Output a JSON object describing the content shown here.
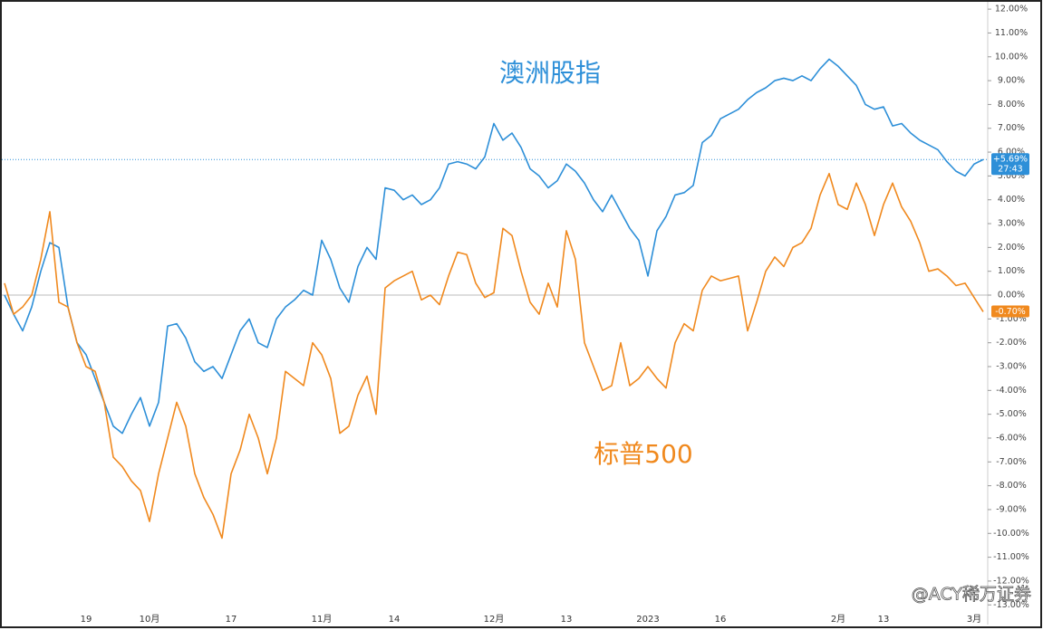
{
  "chart_data": {
    "type": "line",
    "categories": [
      null,
      null,
      null,
      null,
      null,
      null,
      null,
      null,
      null,
      "19",
      null,
      null,
      null,
      null,
      null,
      null,
      "10月",
      null,
      null,
      null,
      null,
      null,
      null,
      null,
      null,
      "17",
      null,
      null,
      null,
      null,
      null,
      null,
      null,
      null,
      null,
      "11月",
      null,
      null,
      null,
      null,
      null,
      null,
      null,
      "14",
      null,
      null,
      null,
      null,
      null,
      null,
      null,
      null,
      null,
      null,
      "12月",
      null,
      null,
      null,
      null,
      null,
      null,
      null,
      "13",
      null,
      null,
      null,
      null,
      null,
      null,
      null,
      null,
      "2023",
      null,
      null,
      null,
      null,
      null,
      null,
      null,
      "16",
      null,
      null,
      null,
      null,
      null,
      null,
      null,
      null,
      null,
      null,
      null,
      null,
      "2月",
      null,
      null,
      null,
      null,
      "13",
      null,
      null,
      null,
      null,
      null,
      null,
      null,
      null,
      null,
      "3月",
      null
    ],
    "series": [
      {
        "name": "澳洲股指",
        "color": "#2d8fd8",
        "last_label": "+5.69%",
        "countdown": "27:43",
        "values": [
          0,
          -0.8,
          -1.5,
          -0.5,
          1,
          2.2,
          2,
          -0.5,
          -2,
          -2.5,
          -3.5,
          -4.5,
          -5.5,
          -5.8,
          -5,
          -4.3,
          -5.5,
          -4.5,
          -1.3,
          -1.2,
          -1.8,
          -2.8,
          -3.2,
          -3.0,
          -3.5,
          -2.5,
          -1.5,
          -1,
          -2,
          -2.2,
          -1,
          -0.5,
          -0.2,
          0.2,
          0,
          2.3,
          1.5,
          0.3,
          -0.3,
          1.2,
          2.0,
          1.5,
          4.5,
          4.4,
          4.0,
          4.2,
          3.8,
          4.0,
          4.5,
          5.5,
          5.6,
          5.5,
          5.3,
          5.8,
          7.2,
          6.5,
          6.8,
          6.2,
          5.3,
          5.0,
          4.5,
          4.8,
          5.5,
          5.2,
          4.7,
          4.0,
          3.5,
          4.2,
          3.5,
          2.8,
          2.3,
          0.8,
          2.7,
          3.3,
          4.2,
          4.3,
          4.6,
          6.4,
          6.7,
          7.4,
          7.6,
          7.8,
          8.2,
          8.5,
          8.7,
          9.0,
          9.1,
          9.0,
          9.2,
          9.0,
          9.5,
          9.9,
          9.6,
          9.2,
          8.8,
          8.0,
          7.8,
          7.9,
          7.1,
          7.2,
          6.8,
          6.5,
          6.3,
          6.1,
          5.6,
          5.2,
          5.0,
          5.5,
          5.69
        ]
      },
      {
        "name": "标普500",
        "color": "#f0891e",
        "last_label": "-0.70%",
        "values": [
          0.5,
          -0.8,
          -0.5,
          0,
          1.5,
          3.5,
          -0.3,
          -0.5,
          -2,
          -3,
          -3.2,
          -4.5,
          -6.8,
          -7.2,
          -7.8,
          -8.2,
          -9.5,
          -7.5,
          -6,
          -4.5,
          -5.5,
          -7.5,
          -8.5,
          -9.2,
          -10.2,
          -7.5,
          -6.5,
          -5,
          -6,
          -7.5,
          -6,
          -3.2,
          -3.5,
          -3.8,
          -2,
          -2.5,
          -3.5,
          -5.8,
          -5.5,
          -4.2,
          -3.4,
          -5,
          0.3,
          0.6,
          0.8,
          1,
          -0.2,
          0,
          -0.4,
          0.8,
          1.8,
          1.7,
          0.5,
          -0.1,
          0.1,
          2.8,
          2.5,
          1.0,
          -0.3,
          -0.8,
          0.5,
          -0.5,
          2.7,
          1.5,
          -2,
          -3,
          -4,
          -3.8,
          -2,
          -3.8,
          -3.5,
          -3,
          -3.5,
          -3.9,
          -2,
          -1.2,
          -1.5,
          0.2,
          0.8,
          0.6,
          0.7,
          0.8,
          -1.5,
          -0.3,
          1.0,
          1.6,
          1.2,
          2.0,
          2.2,
          2.8,
          4.2,
          5.1,
          3.8,
          3.6,
          4.7,
          3.8,
          2.5,
          3.8,
          4.7,
          3.7,
          3.1,
          2.2,
          1.0,
          1.1,
          0.8,
          0.4,
          0.5,
          -0.1,
          -0.7
        ]
      }
    ],
    "ylim": [
      -13.75,
      12.27
    ],
    "yticks": [
      {
        "value": 12,
        "label": "12.00%"
      },
      {
        "value": 11,
        "label": "11.00%"
      },
      {
        "value": 10,
        "label": "10.00%"
      },
      {
        "value": 9,
        "label": "9.00%"
      },
      {
        "value": 8,
        "label": "8.00%"
      },
      {
        "value": 7,
        "label": "7.00%"
      },
      {
        "value": 6,
        "label": "6.00%"
      },
      {
        "value": 5,
        "label": "5.00%"
      },
      {
        "value": 4,
        "label": "4.00%"
      },
      {
        "value": 3,
        "label": "3.00%"
      },
      {
        "value": 2,
        "label": "2.00%"
      },
      {
        "value": 1,
        "label": "1.00%"
      },
      {
        "value": 0,
        "label": "0.00%"
      },
      {
        "value": -1,
        "label": "-1.00%"
      },
      {
        "value": -2,
        "label": "-2.00%"
      },
      {
        "value": -3,
        "label": "-3.00%"
      },
      {
        "value": -4,
        "label": "-4.00%"
      },
      {
        "value": -5,
        "label": "-5.00%"
      },
      {
        "value": -6,
        "label": "-6.00%"
      },
      {
        "value": -7,
        "label": "-7.00%"
      },
      {
        "value": -8,
        "label": "-8.00%"
      },
      {
        "value": -9,
        "label": "-9.00%"
      },
      {
        "value": -10,
        "label": "-10.00%"
      },
      {
        "value": -11,
        "label": "-11.00%"
      },
      {
        "value": -12,
        "label": "-12.00%"
      },
      {
        "value": -13,
        "label": "-13.00%"
      }
    ],
    "grid": false,
    "watermark": "@ACY稀万证券"
  }
}
